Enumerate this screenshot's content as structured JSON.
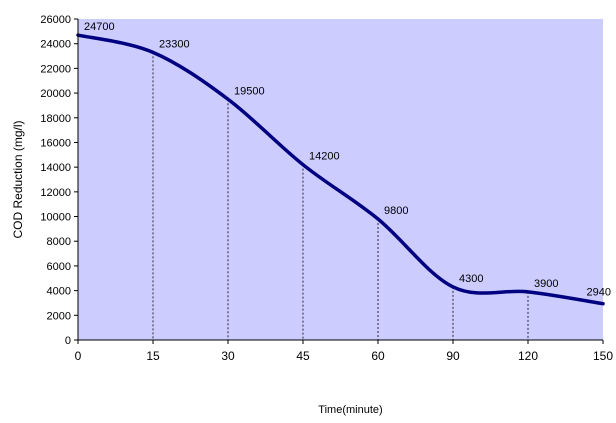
{
  "chart_data": {
    "type": "line",
    "title": "",
    "xlabel": "Time(minute)",
    "ylabel": "COD Reduction (mg/l)",
    "categories": [
      "0",
      "15",
      "30",
      "45",
      "60",
      "90",
      "120",
      "150"
    ],
    "values": [
      24700,
      23300,
      19500,
      14200,
      9800,
      4300,
      3900,
      2940
    ],
    "data_labels": [
      "24700",
      "23300",
      "19500",
      "14200",
      "9800",
      "4300",
      "3900",
      "2940"
    ],
    "ylim": [
      0,
      26000
    ],
    "y_ticks": [
      "0",
      "2000",
      "4000",
      "6000",
      "8000",
      "10000",
      "12000",
      "14000",
      "16000",
      "18000",
      "20000",
      "22000",
      "24000",
      "26000"
    ],
    "x_axis": "categorical, evenly spaced",
    "drop_lines": true,
    "grid": false,
    "legend": "none",
    "smoothed": true,
    "colors": {
      "plot_background": "#ccccff",
      "line": "#000080",
      "axis": "#000000",
      "drop_line": "#000000"
    }
  }
}
